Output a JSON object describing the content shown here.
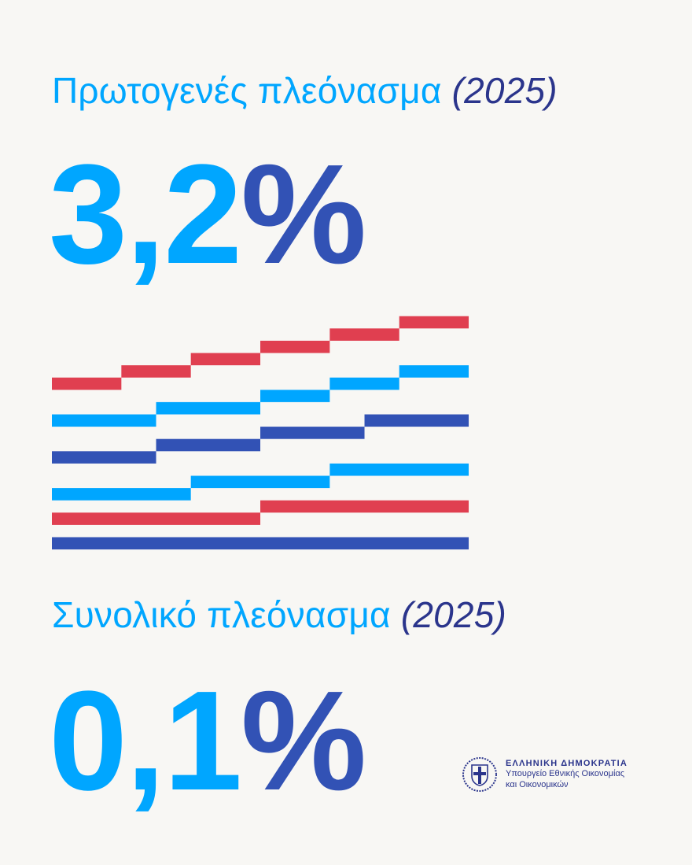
{
  "primary": {
    "label": "Πρωτογενές πλεόνασμα",
    "year": "(2025)",
    "value": "3,2",
    "unit": "%"
  },
  "overall": {
    "label": "Συνολικό πλεόνασμα",
    "year": "(2025)",
    "value": "0,1",
    "unit": "%"
  },
  "logo": {
    "title": "ΕΛΛΗΝΙΚΗ ΔΗΜΟΚΡΑΤΙΑ",
    "line1": "Υπουργείο Εθνικής Οικονομίας",
    "line2": "και Οικονομικών"
  },
  "colors": {
    "light_blue": "#00a6ff",
    "dark_blue": "#3252b5",
    "red": "#e03f50",
    "navy": "#2b358c",
    "background": "#f8f7f4"
  }
}
